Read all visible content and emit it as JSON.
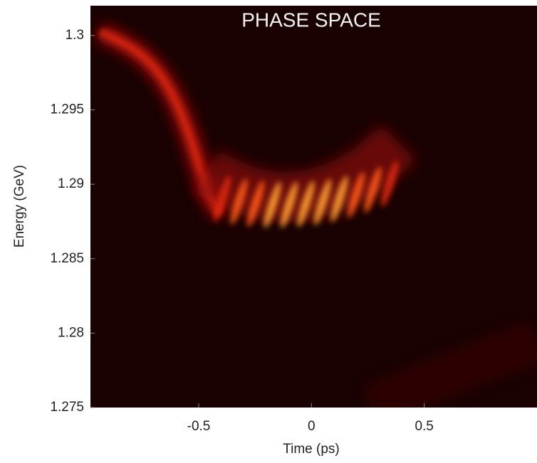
{
  "chart_data": {
    "type": "heatmap",
    "title": "PHASE SPACE",
    "xlabel": "Time (ps)",
    "ylabel": "Energy (GeV)",
    "xlim": [
      -0.98,
      1
    ],
    "xticks": [
      -0.5,
      0,
      0.5
    ],
    "ylim": [
      1.275,
      1.302
    ],
    "yticks": [
      1.3,
      1.295,
      1.29,
      1.285,
      1.28,
      1.275
    ]
  }
}
